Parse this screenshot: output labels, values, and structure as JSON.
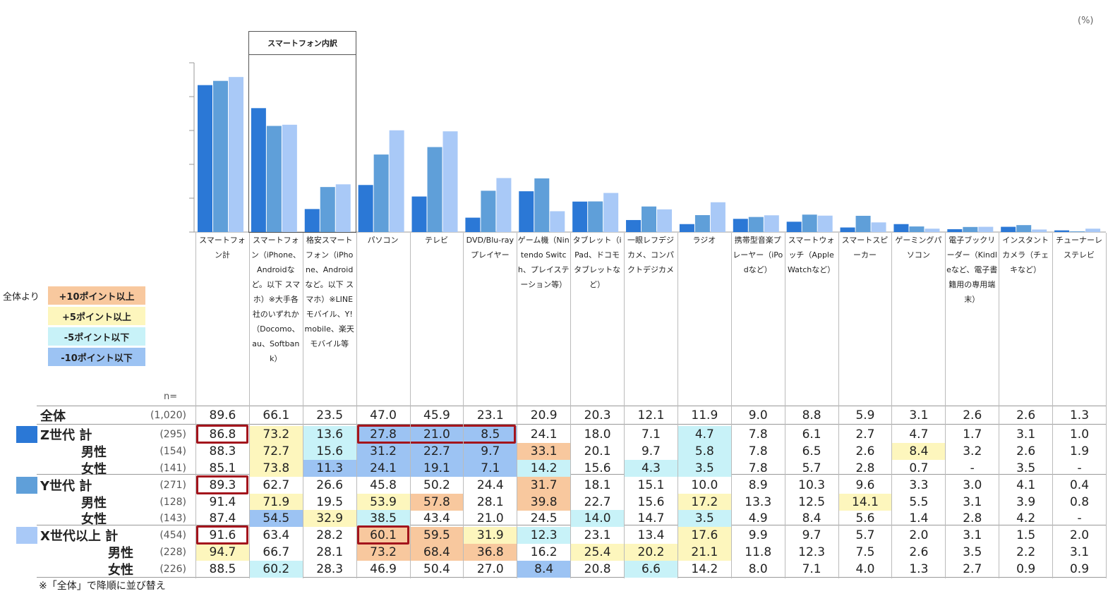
{
  "unit": "(%)",
  "breakdown_label": "スマートフォン内訳",
  "legend": {
    "label": "全体より",
    "items": [
      {
        "text": "+10ポイント以上",
        "color": "#f8c89e"
      },
      {
        "text": "+5ポイント以上",
        "color": "#fdf6bd"
      },
      {
        "text": "-5ポイント以下",
        "color": "#c8f2f8"
      },
      {
        "text": "-10ポイント以下",
        "color": "#9cc3f3"
      }
    ]
  },
  "n_label": "n=",
  "footnote": "※「全体」で降順に並び替え",
  "chart_data": {
    "type": "bar",
    "categories": [
      "スマートフォン計",
      "スマートフォン（iPhone、Androidなど。以下 スマホ）※大手各社のいずれか（Docomo、au、Softbank）",
      "格安スマートフォン（iPhone、Androidなど。以下 スマホ）※LINEモバイル、Y!mobile、楽天モバイル等",
      "パソコン",
      "テレビ",
      "DVD/Blu-rayプレイヤー",
      "ゲーム機（Nintendo Switch、プレイステーション等）",
      "タブレット（iPad、ドコモタブレットなど）",
      "一眼レフデジカメ、コンパクトデジカメ",
      "ラジオ",
      "携帯型音楽プレーヤー（iPodなど）",
      "スマートウォッチ（Apple Watchなど）",
      "スマートスピーカー",
      "ゲーミングパソコン",
      "電子ブックリーダー（Kindleなど、電子書籍用の専用端末）",
      "インスタントカメラ（チェキなど）",
      "チューナーレステレビ"
    ],
    "series": [
      {
        "name": "Z世代 計",
        "color": "#2b78d6",
        "values": [
          86.8,
          73.2,
          13.6,
          27.8,
          21.0,
          8.5,
          24.1,
          18.0,
          7.1,
          4.7,
          7.8,
          6.1,
          2.7,
          4.7,
          1.7,
          3.1,
          1.0
        ]
      },
      {
        "name": "Y世代 計",
        "color": "#5f9fd9",
        "values": [
          89.3,
          62.7,
          26.6,
          45.8,
          50.2,
          24.4,
          31.7,
          18.1,
          15.1,
          10.0,
          8.9,
          10.3,
          9.6,
          3.3,
          3.0,
          4.1,
          0.4
        ]
      },
      {
        "name": "X世代以上 計",
        "color": "#a9c9f7",
        "values": [
          91.6,
          63.4,
          28.2,
          60.1,
          59.5,
          31.9,
          12.3,
          23.1,
          13.4,
          17.6,
          9.9,
          9.7,
          5.7,
          2.0,
          3.1,
          1.5,
          2.0
        ]
      }
    ],
    "ylim": [
      0,
      100
    ],
    "grid": false
  },
  "table": {
    "rows": [
      {
        "label": "全体",
        "n": "(1,020)",
        "values": [
          "89.6",
          "66.1",
          "23.5",
          "47.0",
          "45.9",
          "23.1",
          "20.9",
          "20.3",
          "12.1",
          "11.9",
          "9.0",
          "8.8",
          "5.9",
          "3.1",
          "2.6",
          "2.6",
          "1.3"
        ],
        "fills": [
          "",
          "",
          "",
          "",
          "",
          "",
          "",
          "",
          "",
          "",
          "",
          "",
          "",
          "",
          "",
          "",
          ""
        ]
      },
      {
        "label": "Z世代 計",
        "n": "(295)",
        "swatch": "#2b78d6",
        "values": [
          "86.8",
          "73.2",
          "13.6",
          "27.8",
          "21.0",
          "8.5",
          "24.1",
          "18.0",
          "7.1",
          "4.7",
          "7.8",
          "6.1",
          "2.7",
          "4.7",
          "1.7",
          "3.1",
          "1.0"
        ],
        "fills": [
          "",
          "y",
          "c",
          "b",
          "b",
          "b",
          "",
          "",
          "",
          "c",
          "",
          "",
          "",
          "",
          "",
          "",
          ""
        ]
      },
      {
        "label": "男性",
        "n": "(154)",
        "values": [
          "88.3",
          "72.7",
          "15.6",
          "31.2",
          "22.7",
          "9.7",
          "33.1",
          "20.1",
          "9.7",
          "5.8",
          "7.8",
          "6.5",
          "2.6",
          "8.4",
          "3.2",
          "2.6",
          "1.9"
        ],
        "fills": [
          "",
          "y",
          "c",
          "b",
          "b",
          "b",
          "o",
          "",
          "",
          "c",
          "",
          "",
          "",
          "y",
          "",
          "",
          ""
        ]
      },
      {
        "label": "女性",
        "n": "(141)",
        "values": [
          "85.1",
          "73.8",
          "11.3",
          "24.1",
          "19.1",
          "7.1",
          "14.2",
          "15.6",
          "4.3",
          "3.5",
          "7.8",
          "5.7",
          "2.8",
          "0.7",
          "-",
          "3.5",
          "-"
        ],
        "fills": [
          "",
          "y",
          "b",
          "b",
          "b",
          "b",
          "c",
          "",
          "c",
          "c",
          "",
          "",
          "",
          "",
          "",
          "",
          ""
        ]
      },
      {
        "label": "Y世代 計",
        "n": "(271)",
        "swatch": "#5f9fd9",
        "values": [
          "89.3",
          "62.7",
          "26.6",
          "45.8",
          "50.2",
          "24.4",
          "31.7",
          "18.1",
          "15.1",
          "10.0",
          "8.9",
          "10.3",
          "9.6",
          "3.3",
          "3.0",
          "4.1",
          "0.4"
        ],
        "fills": [
          "",
          "",
          "",
          "",
          "",
          "",
          "o",
          "",
          "",
          "",
          "",
          "",
          "",
          "",
          "",
          "",
          ""
        ]
      },
      {
        "label": "男性",
        "n": "(128)",
        "values": [
          "91.4",
          "71.9",
          "19.5",
          "53.9",
          "57.8",
          "28.1",
          "39.8",
          "22.7",
          "15.6",
          "17.2",
          "13.3",
          "12.5",
          "14.1",
          "5.5",
          "3.1",
          "3.9",
          "0.8"
        ],
        "fills": [
          "",
          "y",
          "",
          "y",
          "o",
          "",
          "o",
          "",
          "",
          "y",
          "",
          "",
          "y",
          "",
          "",
          "",
          ""
        ]
      },
      {
        "label": "女性",
        "n": "(143)",
        "values": [
          "87.4",
          "54.5",
          "32.9",
          "38.5",
          "43.4",
          "21.0",
          "24.5",
          "14.0",
          "14.7",
          "3.5",
          "4.9",
          "8.4",
          "5.6",
          "1.4",
          "2.8",
          "4.2",
          "-"
        ],
        "fills": [
          "",
          "b",
          "y",
          "c",
          "",
          "",
          "",
          "c",
          "",
          "c",
          "",
          "",
          "",
          "",
          "",
          "",
          ""
        ]
      },
      {
        "label": "X世代以上 計",
        "n": "(454)",
        "swatch": "#a9c9f7",
        "values": [
          "91.6",
          "63.4",
          "28.2",
          "60.1",
          "59.5",
          "31.9",
          "12.3",
          "23.1",
          "13.4",
          "17.6",
          "9.9",
          "9.7",
          "5.7",
          "2.0",
          "3.1",
          "1.5",
          "2.0"
        ],
        "fills": [
          "",
          "",
          "",
          "o",
          "o",
          "y",
          "c",
          "",
          "",
          "y",
          "",
          "",
          "",
          "",
          "",
          "",
          ""
        ]
      },
      {
        "label": "男性",
        "n": "(228)",
        "values": [
          "94.7",
          "66.7",
          "28.1",
          "73.2",
          "68.4",
          "36.8",
          "16.2",
          "25.4",
          "20.2",
          "21.1",
          "11.8",
          "12.3",
          "7.5",
          "2.6",
          "3.5",
          "2.2",
          "3.1"
        ],
        "fills": [
          "y",
          "",
          "",
          "o",
          "o",
          "o",
          "",
          "y",
          "y",
          "y",
          "",
          "",
          "",
          "",
          "",
          "",
          ""
        ]
      },
      {
        "label": "女性",
        "n": "(226)",
        "values": [
          "88.5",
          "60.2",
          "28.3",
          "46.9",
          "50.4",
          "27.0",
          "8.4",
          "20.8",
          "6.6",
          "14.2",
          "8.0",
          "7.1",
          "4.0",
          "1.3",
          "2.7",
          "0.9",
          "0.9"
        ],
        "fills": [
          "",
          "c",
          "",
          "",
          "",
          "",
          "b",
          "",
          "c",
          "",
          "",
          "",
          "",
          "",
          "",
          "",
          ""
        ]
      }
    ],
    "fill_colors": {
      "o": "#f8c89e",
      "y": "#fdf6bd",
      "c": "#c8f2f8",
      "b": "#9cc3f3"
    }
  }
}
